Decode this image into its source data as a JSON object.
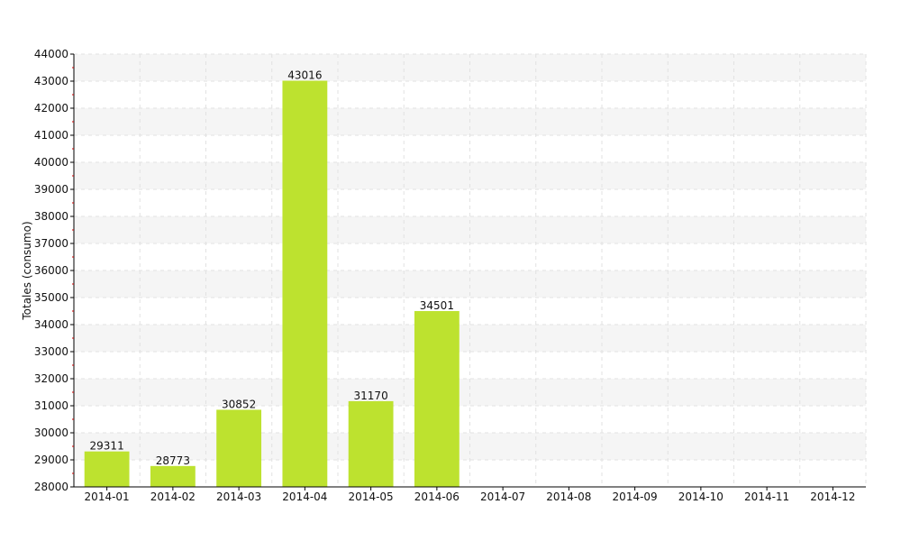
{
  "chart_data": {
    "type": "bar",
    "title": "",
    "xlabel": "",
    "ylabel": "Totales (consumo)",
    "categories": [
      "2014-01",
      "2014-02",
      "2014-03",
      "2014-04",
      "2014-05",
      "2014-06",
      "2014-07",
      "2014-08",
      "2014-09",
      "2014-10",
      "2014-11",
      "2014-12"
    ],
    "values": [
      29311,
      28773,
      30852,
      43016,
      31170,
      34501,
      null,
      null,
      null,
      null,
      null,
      null
    ],
    "ylim": [
      28000,
      44000
    ],
    "yticks": [
      28000,
      29000,
      30000,
      31000,
      32000,
      33000,
      34000,
      35000,
      36000,
      37000,
      38000,
      39000,
      40000,
      41000,
      42000,
      43000,
      44000
    ],
    "grid": true,
    "alternating_bands": true,
    "legend": "none"
  },
  "colors": {
    "bar": "#bde22f",
    "band": "#f5f5f5",
    "grid": "#e2e2e2",
    "axis": "#000000",
    "minor_tick": "#cc0000"
  }
}
